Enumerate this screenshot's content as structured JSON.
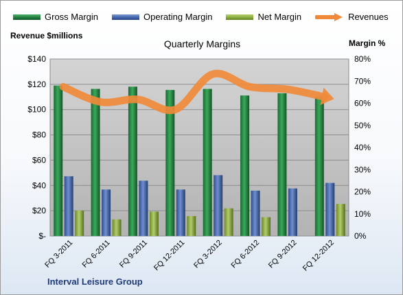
{
  "legend": [
    {
      "name": "Gross Margin",
      "color": "#1e7a3c",
      "type": "bar"
    },
    {
      "name": "Operating Margin",
      "color": "#3e5fa6",
      "type": "bar"
    },
    {
      "name": "Net Margin",
      "color": "#86a83a",
      "type": "bar"
    },
    {
      "name": "Revenues",
      "color": "#f08a3a",
      "type": "line"
    }
  ],
  "footer": {
    "company": "Interval Leisure Group"
  },
  "chart_data": {
    "type": "bar",
    "title": "Quarterly Margins",
    "ylabel_left": "Revenue $millions",
    "ylabel_right": "Margin %",
    "categories": [
      "FQ 3-2011",
      "FQ 6-2011",
      "FQ 9-2011",
      "FQ 12-2011",
      "FQ 3-2012",
      "FQ 6-2012",
      "FQ 9-2012",
      "FQ 12-2012"
    ],
    "series": [
      {
        "name": "Gross Margin",
        "axis": "right",
        "values": [
          68,
          66.5,
          67.5,
          66,
          66.5,
          63.5,
          64.5,
          63
        ]
      },
      {
        "name": "Operating Margin",
        "axis": "right",
        "values": [
          27,
          21,
          25,
          21,
          27.5,
          20.5,
          21.5,
          24
        ]
      },
      {
        "name": "Net Margin",
        "axis": "right",
        "values": [
          11.5,
          7.5,
          11,
          9,
          12.5,
          8.5,
          0,
          14.5
        ]
      },
      {
        "name": "Revenues",
        "axis": "left",
        "type": "line",
        "values": [
          118,
          106,
          108,
          100,
          128,
          118,
          116,
          110
        ]
      }
    ],
    "ylim_left": [
      0,
      140
    ],
    "yticks_left": [
      "$-",
      "$20",
      "$40",
      "$60",
      "$80",
      "$100",
      "$120",
      "$140"
    ],
    "ylim_right": [
      0,
      80
    ],
    "yticks_right": [
      "0%",
      "10%",
      "20%",
      "30%",
      "40%",
      "50%",
      "60%",
      "70%",
      "80%"
    ],
    "grid": true,
    "legend_position": "top"
  }
}
